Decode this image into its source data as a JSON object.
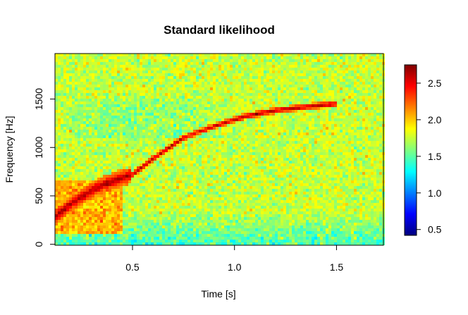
{
  "chart_data": {
    "type": "heatmap",
    "title": "Standard likelihood",
    "xlabel": "Time [s]",
    "ylabel": "Frequency [Hz]",
    "xlim": [
      0.12,
      1.73
    ],
    "ylim": [
      -10,
      1970
    ],
    "x_ticks": [
      {
        "value": 0.5,
        "label": "0.5"
      },
      {
        "value": 1.0,
        "label": "1.0"
      },
      {
        "value": 1.5,
        "label": "1.5"
      }
    ],
    "y_ticks": [
      {
        "value": 0,
        "label": "0"
      },
      {
        "value": 500,
        "label": "500"
      },
      {
        "value": 1000,
        "label": "1000"
      },
      {
        "value": 1500,
        "label": "1500"
      }
    ],
    "colorbar": {
      "range": [
        0.42,
        2.75
      ],
      "colormap": "jet",
      "colors": [
        "#00007f",
        "#0000ff",
        "#007fff",
        "#00ffff",
        "#7fff7f",
        "#ffff00",
        "#ff7f00",
        "#ff0000",
        "#7f0000"
      ],
      "ticks": [
        {
          "value": 0.5,
          "label": "0.5"
        },
        {
          "value": 1.0,
          "label": "1.0"
        },
        {
          "value": 1.5,
          "label": "1.5"
        },
        {
          "value": 2.0,
          "label": "2.0"
        },
        {
          "value": 2.5,
          "label": "2.5"
        }
      ]
    },
    "background_level": 1.75,
    "ridge_track": {
      "description": "high-likelihood chirp ridge (approx. value 2.5-2.7)",
      "time": [
        0.12,
        0.2,
        0.3,
        0.4,
        0.5,
        0.6,
        0.75,
        0.9,
        1.05,
        1.2,
        1.35,
        1.5
      ],
      "frequency": [
        280,
        420,
        560,
        650,
        720,
        880,
        1100,
        1220,
        1320,
        1380,
        1420,
        1450
      ],
      "value": 2.65
    },
    "low_band": {
      "description": "lower-likelihood region near bottom (approx. value 1.4)",
      "frequency_range": [
        0,
        350
      ],
      "value": 1.4
    }
  }
}
